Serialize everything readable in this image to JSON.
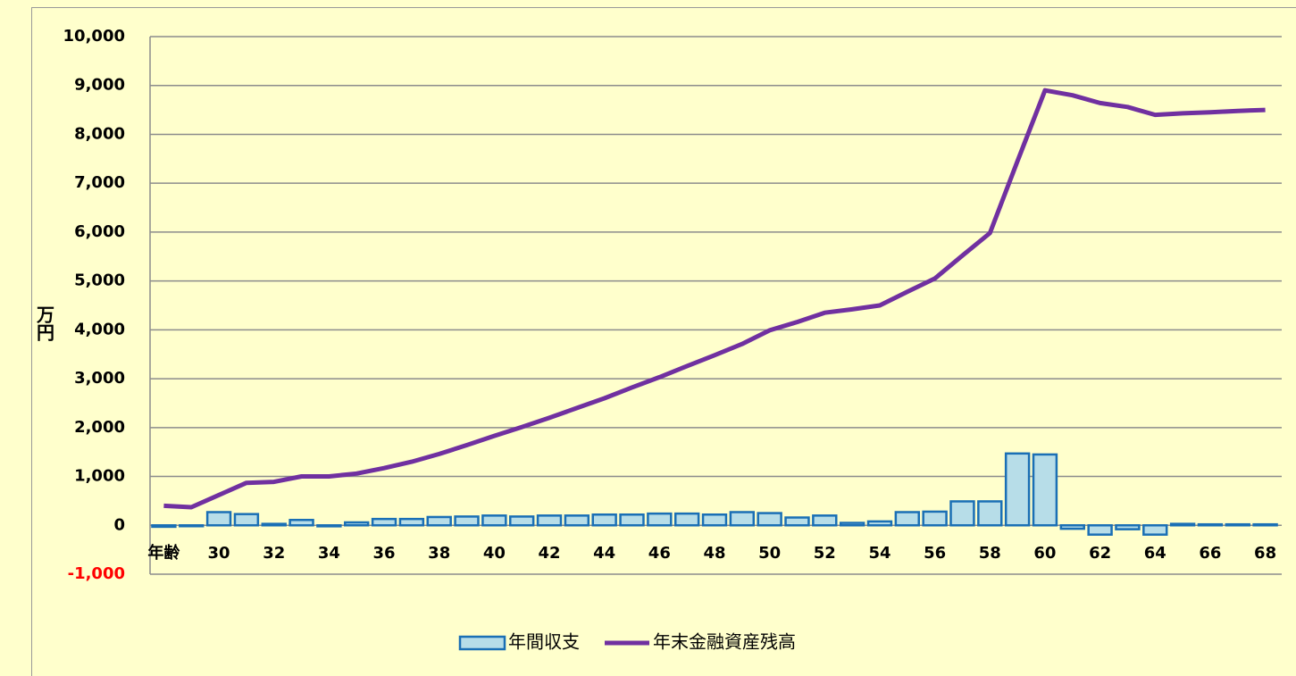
{
  "chart_data": {
    "type": "bar-line",
    "categories": [
      "年齢",
      null,
      "30",
      null,
      "32",
      null,
      "34",
      null,
      "36",
      null,
      "38",
      null,
      "40",
      null,
      "42",
      null,
      "44",
      null,
      "46",
      null,
      "48",
      null,
      "50",
      null,
      "52",
      null,
      "54",
      null,
      "56",
      null,
      "58",
      null,
      "60",
      null,
      "62",
      null,
      "64",
      null,
      "66",
      null,
      "68"
    ],
    "ylabel": "万円",
    "ylim": [
      -1000,
      10000
    ],
    "yticks": [
      {
        "value": -1000,
        "label": "-1,000"
      },
      0,
      {
        "value": 1000,
        "label": "1,000"
      },
      {
        "value": 2000,
        "label": "2,000"
      },
      {
        "value": 3000,
        "label": "3,000"
      },
      {
        "value": 4000,
        "label": "4,000"
      },
      {
        "value": 5000,
        "label": "5,000"
      },
      {
        "value": 6000,
        "label": "6,000"
      },
      {
        "value": 7000,
        "label": "7,000"
      },
      {
        "value": 8000,
        "label": "8,000"
      },
      {
        "value": 9000,
        "label": "9,000"
      },
      {
        "value": 10000,
        "label": "10,000"
      }
    ],
    "negative_tick_color": "#ff0000",
    "grid": true,
    "legend": "bottom",
    "series": [
      {
        "name": "年間収支",
        "kind": "bar",
        "color": "#b7dde8",
        "edge_color": "#1a6fb5",
        "values": [
          -30,
          -10,
          270,
          230,
          30,
          110,
          -20,
          60,
          130,
          130,
          170,
          180,
          200,
          180,
          200,
          200,
          220,
          220,
          240,
          240,
          220,
          270,
          250,
          160,
          200,
          50,
          80,
          270,
          280,
          490,
          490,
          1470,
          1450,
          -70,
          -190,
          -80,
          -190,
          30,
          20,
          20,
          20
        ]
      },
      {
        "name": "年末金融資産残高",
        "kind": "line",
        "color": "#7030a0",
        "values": [
          400,
          370,
          620,
          870,
          890,
          1000,
          1000,
          1060,
          1170,
          1300,
          1460,
          1640,
          1830,
          2010,
          2200,
          2400,
          2600,
          2820,
          3030,
          3260,
          3480,
          3710,
          3990,
          4160,
          4350,
          4420,
          4500,
          4780,
          5050,
          5520,
          5980,
          7450,
          8900,
          8800,
          8640,
          8560,
          8400,
          8430,
          8450,
          8480,
          8500
        ]
      }
    ]
  }
}
